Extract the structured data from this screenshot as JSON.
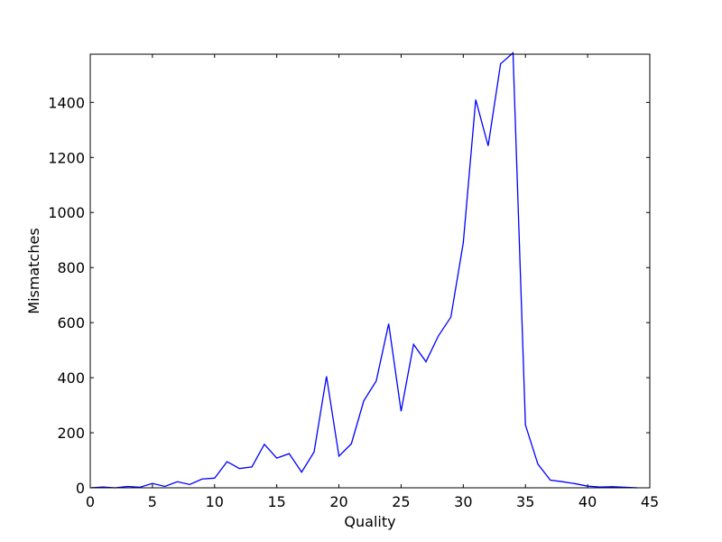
{
  "chart_data": {
    "type": "line",
    "title": "",
    "xlabel": "Quality",
    "ylabel": "Mismatches",
    "xlim": [
      0,
      45
    ],
    "ylim": [
      0,
      1575
    ],
    "xticks": [
      0,
      5,
      10,
      15,
      20,
      25,
      30,
      35,
      40,
      45
    ],
    "yticks": [
      0,
      200,
      400,
      600,
      800,
      1000,
      1200,
      1400
    ],
    "grid": false,
    "legend": "none",
    "line_color": "#0000ff",
    "series": [
      {
        "x": [
          0,
          1,
          2,
          3,
          4,
          5,
          6,
          7,
          8,
          9,
          10,
          11,
          12,
          13,
          14,
          15,
          16,
          17,
          18,
          19,
          20,
          21,
          22,
          23,
          24,
          25,
          26,
          27,
          28,
          29,
          30,
          31,
          32,
          33,
          34,
          35,
          36,
          37,
          38,
          39,
          40,
          41,
          42,
          43,
          44
        ],
        "values": [
          0,
          3,
          0,
          5,
          2,
          16,
          5,
          22,
          12,
          32,
          35,
          95,
          70,
          76,
          158,
          108,
          124,
          57,
          130,
          405,
          115,
          160,
          316,
          388,
          596,
          278,
          521,
          458,
          552,
          620,
          890,
          1410,
          1242,
          1540,
          1580,
          228,
          86,
          28,
          22,
          15,
          6,
          3,
          4,
          2,
          0
        ]
      }
    ]
  }
}
